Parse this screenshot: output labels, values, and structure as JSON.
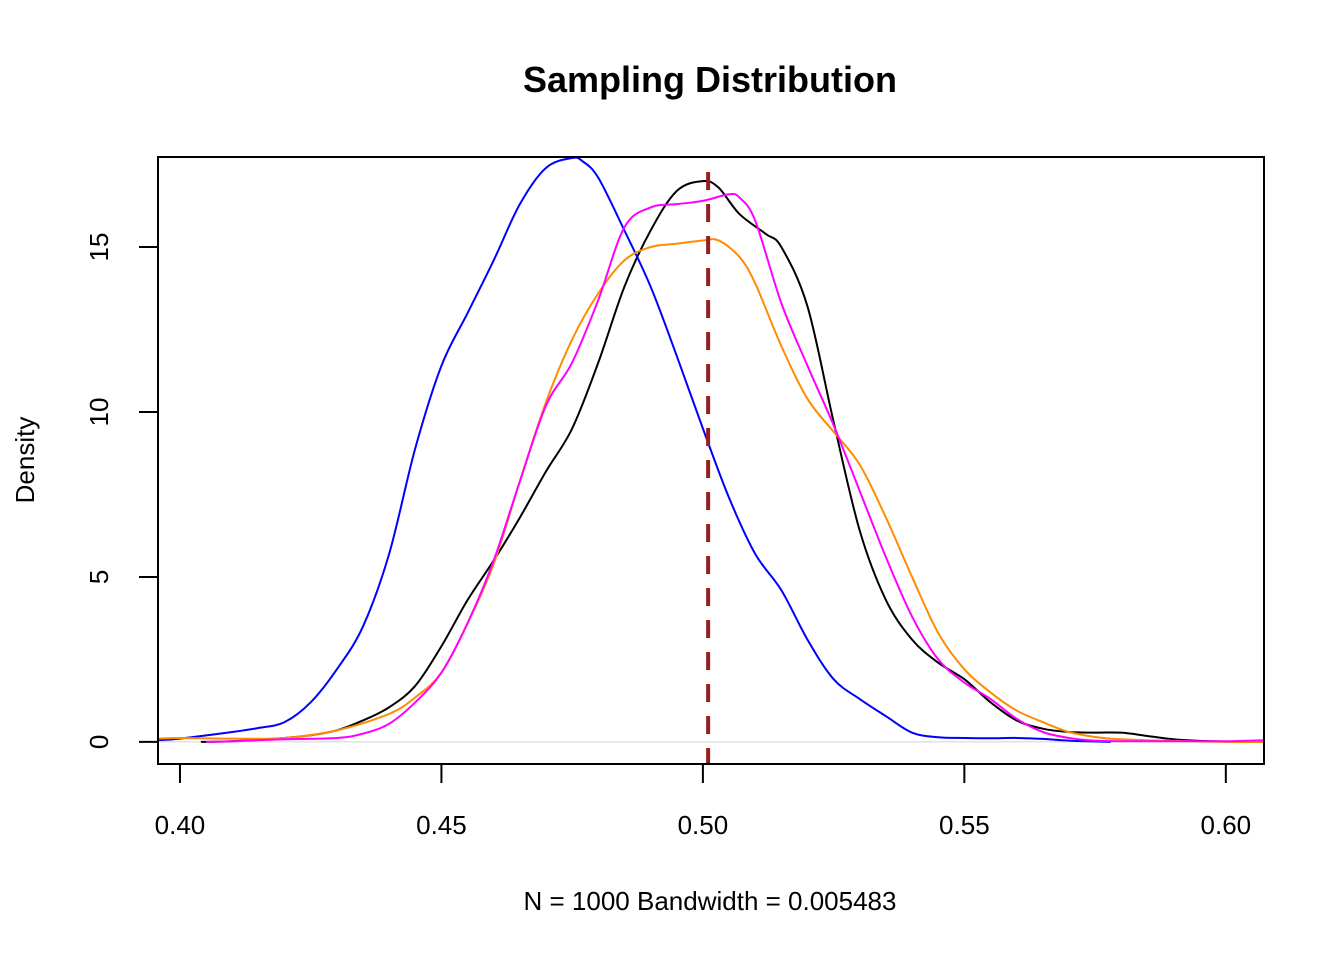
{
  "chart_data": {
    "type": "line",
    "title": "Sampling Distribution",
    "xlabel": "N = 1000   Bandwidth = 0.005483",
    "ylabel": "Density",
    "xlim": [
      0.3958,
      0.6073
    ],
    "ylim": [
      -0.67,
      17.73
    ],
    "grid": false,
    "legend": null,
    "x_ticks": [
      {
        "value": 0.4,
        "label": "0.40"
      },
      {
        "value": 0.45,
        "label": "0.45"
      },
      {
        "value": 0.5,
        "label": "0.50"
      },
      {
        "value": 0.55,
        "label": "0.55"
      },
      {
        "value": 0.6,
        "label": "0.60"
      }
    ],
    "y_ticks": [
      {
        "value": 0,
        "label": "0"
      },
      {
        "value": 5,
        "label": "5"
      },
      {
        "value": 10,
        "label": "10"
      },
      {
        "value": 15,
        "label": "15"
      }
    ],
    "baseline": {
      "y": 0,
      "color": "#d3d3d3"
    },
    "reference_line": {
      "x": 0.501,
      "color": "#9b1c1f",
      "style": "dashed"
    },
    "series": [
      {
        "name": "black",
        "color": "#000000",
        "x": [
          0.404,
          0.41,
          0.42,
          0.425,
          0.43,
          0.435,
          0.44,
          0.445,
          0.45,
          0.455,
          0.46,
          0.465,
          0.47,
          0.475,
          0.48,
          0.485,
          0.49,
          0.495,
          0.5,
          0.503,
          0.507,
          0.512,
          0.515,
          0.52,
          0.525,
          0.53,
          0.535,
          0.54,
          0.545,
          0.55,
          0.555,
          0.56,
          0.565,
          0.57,
          0.575,
          0.58,
          0.585,
          0.59,
          0.595,
          0.6,
          0.6073
        ],
        "y": [
          0.0,
          0.02,
          0.12,
          0.2,
          0.35,
          0.65,
          1.05,
          1.7,
          2.9,
          4.3,
          5.5,
          6.8,
          8.2,
          9.5,
          11.5,
          13.8,
          15.5,
          16.7,
          17.0,
          16.8,
          16.0,
          15.4,
          15.0,
          13.2,
          9.7,
          6.4,
          4.3,
          3.1,
          2.4,
          1.9,
          1.2,
          0.65,
          0.4,
          0.3,
          0.28,
          0.28,
          0.18,
          0.08,
          0.03,
          0.01,
          0.0
        ]
      },
      {
        "name": "blue",
        "color": "#0000ff",
        "x": [
          0.3958,
          0.4,
          0.41,
          0.415,
          0.42,
          0.425,
          0.43,
          0.435,
          0.44,
          0.445,
          0.45,
          0.455,
          0.46,
          0.465,
          0.47,
          0.475,
          0.477,
          0.48,
          0.485,
          0.49,
          0.495,
          0.5,
          0.505,
          0.51,
          0.515,
          0.52,
          0.525,
          0.53,
          0.535,
          0.54,
          0.545,
          0.55,
          0.555,
          0.56,
          0.565,
          0.57,
          0.578
        ],
        "y": [
          0.05,
          0.1,
          0.3,
          0.42,
          0.6,
          1.2,
          2.2,
          3.5,
          5.7,
          8.9,
          11.4,
          13.0,
          14.6,
          16.3,
          17.4,
          17.7,
          17.6,
          17.1,
          15.5,
          13.8,
          11.7,
          9.5,
          7.4,
          5.7,
          4.6,
          3.1,
          1.9,
          1.3,
          0.78,
          0.28,
          0.14,
          0.12,
          0.11,
          0.12,
          0.09,
          0.04,
          0.0
        ]
      },
      {
        "name": "orange",
        "color": "#ff8c00",
        "x": [
          0.3958,
          0.4,
          0.41,
          0.42,
          0.43,
          0.44,
          0.445,
          0.45,
          0.455,
          0.46,
          0.465,
          0.47,
          0.475,
          0.48,
          0.485,
          0.49,
          0.495,
          0.5,
          0.503,
          0.507,
          0.51,
          0.515,
          0.52,
          0.525,
          0.53,
          0.535,
          0.54,
          0.545,
          0.55,
          0.555,
          0.56,
          0.565,
          0.57,
          0.575,
          0.58,
          0.59,
          0.6,
          0.6073
        ],
        "y": [
          0.1,
          0.12,
          0.1,
          0.12,
          0.35,
          0.85,
          1.35,
          2.1,
          3.6,
          5.4,
          7.9,
          10.3,
          12.2,
          13.6,
          14.6,
          15.0,
          15.1,
          15.2,
          15.2,
          14.7,
          13.9,
          12.0,
          10.4,
          9.4,
          8.4,
          6.8,
          5.0,
          3.3,
          2.2,
          1.5,
          0.95,
          0.6,
          0.3,
          0.15,
          0.08,
          0.03,
          0.0,
          0.0
        ]
      },
      {
        "name": "magenta",
        "color": "#ff00ff",
        "x": [
          0.405,
          0.41,
          0.42,
          0.43,
          0.435,
          0.44,
          0.445,
          0.45,
          0.455,
          0.46,
          0.465,
          0.47,
          0.475,
          0.48,
          0.485,
          0.49,
          0.495,
          0.5,
          0.505,
          0.507,
          0.51,
          0.515,
          0.52,
          0.525,
          0.53,
          0.535,
          0.54,
          0.545,
          0.55,
          0.555,
          0.56,
          0.565,
          0.57,
          0.575,
          0.58,
          0.59,
          0.6,
          0.6073
        ],
        "y": [
          0.0,
          0.02,
          0.08,
          0.12,
          0.25,
          0.55,
          1.2,
          2.1,
          3.6,
          5.5,
          7.9,
          10.2,
          11.5,
          13.4,
          15.6,
          16.2,
          16.3,
          16.4,
          16.6,
          16.5,
          15.8,
          13.3,
          11.4,
          9.6,
          7.6,
          5.6,
          3.8,
          2.5,
          1.8,
          1.3,
          0.7,
          0.3,
          0.12,
          0.04,
          0.02,
          0.02,
          0.02,
          0.05
        ]
      }
    ]
  }
}
